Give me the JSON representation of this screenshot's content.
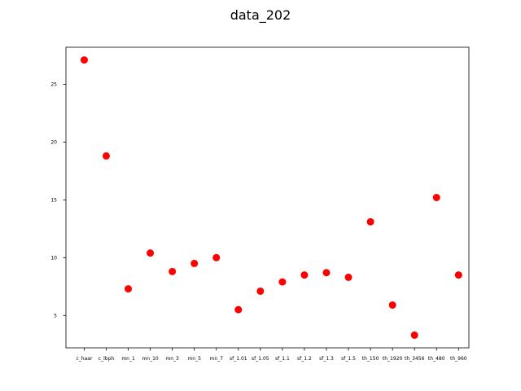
{
  "chart_data": {
    "type": "scatter",
    "title": "data_202",
    "xlabel": "",
    "ylabel": "",
    "categories": [
      "c_haar",
      "c_lbph",
      "mn_1",
      "mn_10",
      "mn_3",
      "mn_5",
      "mn_7",
      "sf_1.01",
      "sf_1.05",
      "sf_1.1",
      "sf_1.2",
      "sf_1.3",
      "sf_1.5",
      "th_150",
      "th_1920",
      "th_3456",
      "th_480",
      "th_960"
    ],
    "values": [
      27.1,
      18.8,
      7.3,
      10.4,
      8.8,
      9.5,
      10.0,
      5.5,
      7.1,
      7.9,
      8.5,
      8.7,
      8.3,
      13.1,
      5.9,
      3.3,
      15.2,
      8.5
    ],
    "ylim": [
      2.2,
      28.2
    ],
    "yticks": [
      5,
      10,
      15,
      20,
      25
    ],
    "marker_color": "#ff0000",
    "grid": false
  }
}
